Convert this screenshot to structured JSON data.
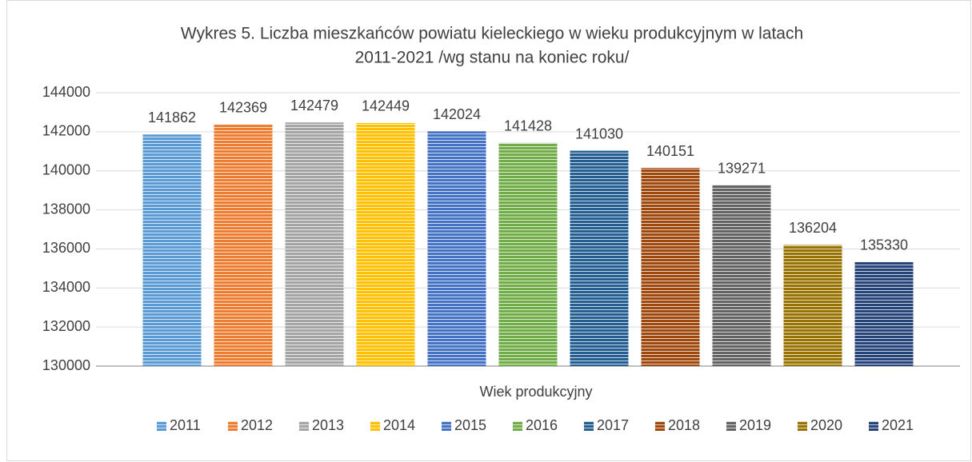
{
  "chart_data": {
    "type": "bar",
    "title": [
      "Wykres 5. Liczba mieszkańców powiatu kieleckiego w wieku produkcyjnym w latach",
      "2011-2021 /wg stanu na koniec roku/"
    ],
    "categories": [
      "Wiek produkcyjny"
    ],
    "series": [
      {
        "name": "2011",
        "color": "#5b9bd5",
        "values": [
          141862
        ]
      },
      {
        "name": "2012",
        "color": "#ed7d31",
        "values": [
          142369
        ]
      },
      {
        "name": "2013",
        "color": "#a5a5a5",
        "values": [
          142479
        ]
      },
      {
        "name": "2014",
        "color": "#ffc000",
        "values": [
          142449
        ]
      },
      {
        "name": "2015",
        "color": "#4472c4",
        "values": [
          142024
        ]
      },
      {
        "name": "2016",
        "color": "#70ad47",
        "values": [
          141428
        ]
      },
      {
        "name": "2017",
        "color": "#255e91",
        "values": [
          141030
        ]
      },
      {
        "name": "2018",
        "color": "#9e480e",
        "values": [
          140151
        ]
      },
      {
        "name": "2019",
        "color": "#636363",
        "values": [
          139271
        ]
      },
      {
        "name": "2020",
        "color": "#997300",
        "values": [
          136204
        ]
      },
      {
        "name": "2021",
        "color": "#264478",
        "values": [
          135330
        ]
      }
    ],
    "ylim": [
      130000,
      144000
    ],
    "yticks": [
      130000,
      132000,
      134000,
      136000,
      138000,
      140000,
      142000,
      144000
    ],
    "grid": true,
    "legend": "bottom",
    "pattern": "horizontal-stripes"
  }
}
